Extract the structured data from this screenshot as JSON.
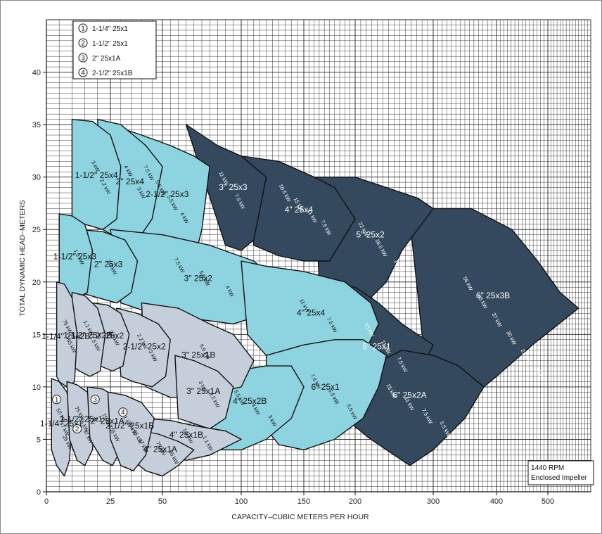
{
  "chart_data": {
    "type": "area",
    "xlabel": "CAPACITY–CUBIC METERS PER HOUR",
    "ylabel": "TOTAL DYNAMIC HEAD–METERS",
    "x_ticks": [
      "0",
      "25",
      "50",
      "100",
      "150",
      "200",
      "300",
      "400",
      "500"
    ],
    "y_ticks": [
      "0",
      "5",
      "10",
      "15",
      "20",
      "25",
      "30",
      "35",
      "40"
    ],
    "ylim": [
      0,
      45
    ],
    "grid": true,
    "legend": [
      {
        "marker": "1",
        "label": "1-1/4\"  25x1"
      },
      {
        "marker": "2",
        "label": "1-1/2\"  25x1"
      },
      {
        "marker": "3",
        "label": "2\"  25x1A"
      },
      {
        "marker": "4",
        "label": "2-1/2\"  25x1B"
      }
    ],
    "annotation": [
      "1440 RPM",
      "Enclosed Impeller"
    ],
    "colors": {
      "dark": "#34495e",
      "cyan": "#8ed3e0",
      "light": "#c4cfdb",
      "outline": "#111111"
    },
    "regions": [
      {
        "label": "6\" 25x3B",
        "shade": "dark",
        "poly": [
          [
            270,
            26
          ],
          [
            300,
            27
          ],
          [
            360,
            27
          ],
          [
            430,
            25
          ],
          [
            480,
            22
          ],
          [
            520,
            19
          ],
          [
            550,
            17.5
          ],
          [
            470,
            14
          ],
          [
            400,
            11
          ],
          [
            340,
            8
          ],
          [
            300,
            5
          ]
        ],
        "kw": [
          "56 kW",
          "45 kW",
          "37 kW",
          "30 kW",
          "22 kW",
          "19 kW"
        ]
      },
      {
        "label": "5\" 25x2",
        "shade": "dark",
        "poly": [
          [
            160,
            30
          ],
          [
            200,
            30
          ],
          [
            240,
            29
          ],
          [
            280,
            28
          ],
          [
            300,
            27
          ],
          [
            260,
            23
          ],
          [
            240,
            20
          ],
          [
            200,
            17
          ],
          [
            180,
            17
          ],
          [
            165,
            20
          ]
        ],
        "kw": [
          "22 kW",
          "18.5 kW",
          "15 kW"
        ]
      },
      {
        "label": "4\" 25x4",
        "shade": "dark",
        "poly": [
          [
            100,
            32
          ],
          [
            130,
            31.5
          ],
          [
            160,
            30
          ],
          [
            180,
            29
          ],
          [
            200,
            26
          ],
          [
            175,
            22
          ],
          [
            150,
            22
          ],
          [
            130,
            22.5
          ],
          [
            110,
            23.5
          ]
        ],
        "kw": [
          "18.5 kW",
          "15 kW",
          "11 kW",
          "7.5 kW"
        ]
      },
      {
        "label": "3\" 25x3",
        "shade": "dark",
        "poly": [
          [
            65,
            35
          ],
          [
            85,
            33
          ],
          [
            100,
            32
          ],
          [
            120,
            30
          ],
          [
            110,
            24
          ],
          [
            100,
            23
          ],
          [
            90,
            23.5
          ]
        ],
        "kw": [
          "11 kW",
          "7.5 kW"
        ]
      },
      {
        "label": "5\" 25x1",
        "shade": "dark",
        "poly": [
          [
            170,
            20
          ],
          [
            200,
            19.5
          ],
          [
            230,
            18
          ],
          [
            260,
            16
          ],
          [
            300,
            14
          ],
          [
            280,
            11
          ],
          [
            250,
            9
          ],
          [
            220,
            8
          ],
          [
            200,
            8
          ],
          [
            180,
            11
          ]
        ],
        "kw": [
          "15 kW",
          "11 kW",
          "7.5 kW"
        ]
      },
      {
        "label": "6\" 25x2A",
        "shade": "dark",
        "poly": [
          [
            180,
            11
          ],
          [
            220,
            12
          ],
          [
            260,
            13.5
          ],
          [
            300,
            13
          ],
          [
            340,
            12
          ],
          [
            380,
            10
          ],
          [
            350,
            7
          ],
          [
            300,
            4
          ],
          [
            270,
            2.5
          ],
          [
            220,
            5
          ],
          [
            190,
            7
          ]
        ],
        "kw": [
          "15 kW",
          "11 kW",
          "7.5 kW",
          "5.5 kW"
        ]
      },
      {
        "label": "2-1/2\" 25x3",
        "shade": "cyan",
        "poly": [
          [
            25,
            35
          ],
          [
            40,
            34
          ],
          [
            55,
            33
          ],
          [
            70,
            32
          ],
          [
            80,
            31
          ],
          [
            75,
            25
          ],
          [
            70,
            22
          ],
          [
            60,
            22
          ],
          [
            45,
            22.5
          ],
          [
            30,
            23
          ]
        ],
        "kw": [
          "7.5 kW",
          "5.5 kW",
          "5.5 kW",
          "4 kW"
        ]
      },
      {
        "label": "2\" 25x4",
        "shade": "cyan",
        "poly": [
          [
            20,
            35.5
          ],
          [
            30,
            35
          ],
          [
            42,
            33
          ],
          [
            50,
            31
          ],
          [
            45,
            26
          ],
          [
            38,
            24
          ],
          [
            30,
            24
          ],
          [
            22,
            25
          ]
        ],
        "kw": [
          "4 kW",
          "3 kW"
        ]
      },
      {
        "label": "1-1/2\" 25x4",
        "shade": "cyan",
        "poly": [
          [
            10,
            35.5
          ],
          [
            18,
            35.3
          ],
          [
            25,
            34
          ],
          [
            30,
            31
          ],
          [
            28,
            26
          ],
          [
            22,
            25
          ],
          [
            15,
            25.5
          ],
          [
            10,
            26
          ]
        ],
        "kw": [
          "3 kW",
          "2.2 kW"
        ]
      },
      {
        "label": "3\" 25x2",
        "shade": "cyan",
        "poly": [
          [
            25,
            25
          ],
          [
            50,
            24.5
          ],
          [
            80,
            23.5
          ],
          [
            110,
            22
          ],
          [
            130,
            20
          ],
          [
            120,
            17
          ],
          [
            95,
            16
          ],
          [
            70,
            16.5
          ],
          [
            45,
            17
          ],
          [
            30,
            18
          ]
        ],
        "kw": [
          "7.5 kW",
          "5.5 kW",
          "4 kW"
        ]
      },
      {
        "label": "2\" 25x3",
        "shade": "cyan",
        "poly": [
          [
            12,
            25
          ],
          [
            22,
            24.8
          ],
          [
            32,
            24
          ],
          [
            38,
            22
          ],
          [
            35,
            19
          ],
          [
            28,
            18
          ],
          [
            20,
            18.5
          ],
          [
            13,
            19
          ]
        ],
        "kw": [
          "2.2 kW"
        ]
      },
      {
        "label": "1-1/2\" 25x3",
        "shade": "cyan",
        "poly": [
          [
            5,
            26.5
          ],
          [
            10,
            26.3
          ],
          [
            15,
            25.5
          ],
          [
            18,
            23
          ],
          [
            16,
            19
          ],
          [
            12,
            18.5
          ],
          [
            8,
            18.5
          ],
          [
            5,
            19
          ]
        ],
        "kw": [
          "1.5 kW"
        ]
      },
      {
        "label": "4\" 25x4",
        "shade": "cyan",
        "poly": [
          [
            100,
            22
          ],
          [
            120,
            21.5
          ],
          [
            150,
            21
          ],
          [
            190,
            20
          ],
          [
            220,
            18
          ],
          [
            230,
            16
          ],
          [
            210,
            13
          ],
          [
            180,
            12
          ],
          [
            150,
            12
          ],
          [
            120,
            13
          ],
          [
            105,
            15
          ]
        ],
        "kw": [
          "11 kW",
          "7.5 kW"
        ]
      },
      {
        "label": "6\" 25x1",
        "shade": "cyan",
        "poly": [
          [
            120,
            13
          ],
          [
            150,
            14
          ],
          [
            180,
            14.5
          ],
          [
            210,
            14.5
          ],
          [
            240,
            13
          ],
          [
            230,
            10
          ],
          [
            210,
            7
          ],
          [
            180,
            5
          ],
          [
            150,
            4
          ],
          [
            130,
            4.5
          ],
          [
            120,
            6
          ]
        ],
        "kw": [
          "7.5 kW",
          "5.5 kW",
          "5.5 kW"
        ]
      },
      {
        "label": "4\" 25x2B",
        "shade": "cyan",
        "poly": [
          [
            70,
            11
          ],
          [
            95,
            11.5
          ],
          [
            120,
            12
          ],
          [
            140,
            12
          ],
          [
            150,
            10
          ],
          [
            140,
            7
          ],
          [
            120,
            5
          ],
          [
            100,
            4
          ],
          [
            85,
            4
          ],
          [
            70,
            6
          ]
        ],
        "kw": [
          "5.5 kW",
          "4 kW",
          "3 kW"
        ]
      },
      {
        "label": "3\" 25x1B",
        "shade": "light",
        "poly": [
          [
            40,
            18
          ],
          [
            60,
            17.5
          ],
          [
            80,
            16
          ],
          [
            95,
            15
          ],
          [
            110,
            12.5
          ],
          [
            100,
            10
          ],
          [
            85,
            9.5
          ],
          [
            70,
            9
          ],
          [
            55,
            9
          ],
          [
            42,
            10
          ]
        ],
        "kw": [
          "5.5 kW"
        ]
      },
      {
        "label": "3\" 25x1A",
        "shade": "light",
        "poly": [
          [
            58,
            13
          ],
          [
            70,
            12.5
          ],
          [
            85,
            11.5
          ],
          [
            95,
            10
          ],
          [
            90,
            7
          ],
          [
            80,
            6
          ],
          [
            70,
            6.5
          ],
          [
            60,
            7
          ]
        ],
        "kw": [
          "3 kW",
          "2.2 kW"
        ]
      },
      {
        "label": "2-1/2\" 25x2",
        "shade": "light",
        "poly": [
          [
            28,
            17.5
          ],
          [
            38,
            17
          ],
          [
            48,
            16
          ],
          [
            55,
            14.5
          ],
          [
            52,
            11
          ],
          [
            45,
            10
          ],
          [
            36,
            10.5
          ],
          [
            30,
            11
          ]
        ],
        "kw": [
          "2.2 kW",
          "3 kW"
        ]
      },
      {
        "label": "2\" 25x2",
        "shade": "light",
        "poly": [
          [
            18,
            18
          ],
          [
            24,
            17.8
          ],
          [
            30,
            17
          ],
          [
            34,
            15
          ],
          [
            31,
            12
          ],
          [
            26,
            11.5
          ],
          [
            21,
            12
          ],
          [
            18,
            12.5
          ]
        ],
        "kw": [
          "2.2 kW"
        ]
      },
      {
        "label": "1-1/2\" 25x2B",
        "shade": "light",
        "poly": [
          [
            10,
            19
          ],
          [
            15,
            18.7
          ],
          [
            20,
            17.5
          ],
          [
            23,
            15
          ],
          [
            21,
            11.5
          ],
          [
            17,
            11
          ],
          [
            13,
            11.5
          ],
          [
            10,
            12
          ]
        ],
        "kw": [
          "1.1 kW",
          "1.5 kW"
        ]
      },
      {
        "label": "1-1/4\" 25x2B",
        "shade": "light",
        "poly": [
          [
            4,
            20
          ],
          [
            7,
            19.8
          ],
          [
            10,
            18.5
          ],
          [
            12,
            15
          ],
          [
            11,
            10.5
          ],
          [
            8,
            10
          ],
          [
            5,
            10.5
          ],
          [
            4,
            11
          ]
        ],
        "kw": [
          "75 kW",
          "55 kW"
        ]
      },
      {
        "label": "4\" 25x1B",
        "shade": "light",
        "poly": [
          [
            40,
            7
          ],
          [
            55,
            6.8
          ],
          [
            70,
            6.3
          ],
          [
            90,
            5.8
          ],
          [
            100,
            5
          ],
          [
            80,
            3.5
          ],
          [
            65,
            3
          ],
          [
            50,
            3.5
          ],
          [
            42,
            4.5
          ]
        ],
        "kw": [
          "1.5 kW",
          "1.1 kW"
        ]
      },
      {
        "label": "4\" 25x1A",
        "shade": "light",
        "poly": [
          [
            35,
            6
          ],
          [
            48,
            5.5
          ],
          [
            60,
            4.8
          ],
          [
            70,
            4
          ],
          [
            60,
            2.5
          ],
          [
            50,
            1.5
          ],
          [
            42,
            2
          ],
          [
            36,
            3
          ]
        ],
        "kw": [
          "75 kW",
          "55 kW"
        ]
      },
      {
        "label": "1-1/4\" 25x1",
        "shade": "light",
        "poly": [
          [
            2,
            10.8
          ],
          [
            5,
            10.5
          ],
          [
            8,
            9.5
          ],
          [
            10,
            7
          ],
          [
            9,
            3
          ],
          [
            7,
            1.5
          ],
          [
            4,
            2.5
          ],
          [
            2,
            4
          ]
        ],
        "kw": [
          "55 kW",
          "37 kW",
          "25 kW"
        ]
      },
      {
        "label": "1-1/2\" 25x1",
        "shade": "light",
        "poly": [
          [
            8,
            10.5
          ],
          [
            12,
            10.2
          ],
          [
            16,
            9.5
          ],
          [
            19,
            7.5
          ],
          [
            18,
            4
          ],
          [
            15,
            2.5
          ],
          [
            12,
            3
          ],
          [
            9,
            5
          ]
        ],
        "kw": [
          "75 kW",
          "55 kW",
          "37 kW"
        ]
      },
      {
        "label": "2\" 25x1A",
        "shade": "light",
        "poly": [
          [
            16,
            10
          ],
          [
            22,
            9.8
          ],
          [
            28,
            9
          ],
          [
            33,
            7.5
          ],
          [
            30,
            4
          ],
          [
            26,
            2.5
          ],
          [
            22,
            3
          ],
          [
            17,
            5
          ]
        ],
        "kw": [
          "75 kW",
          "55 kW"
        ]
      },
      {
        "label": "2-1/2\" 25x1B",
        "shade": "light",
        "poly": [
          [
            24,
            9.5
          ],
          [
            32,
            9.2
          ],
          [
            40,
            8.5
          ],
          [
            46,
            7
          ],
          [
            42,
            3.5
          ],
          [
            36,
            2
          ],
          [
            30,
            2.5
          ],
          [
            25,
            5
          ]
        ],
        "kw": [
          "1.1 kW",
          "75 kW",
          "55 kW",
          "37 kW"
        ]
      }
    ],
    "markers": [
      {
        "label": "1",
        "x": 4,
        "y": 8.8
      },
      {
        "label": "2",
        "x": 12,
        "y": 6
      },
      {
        "label": "3",
        "x": 19,
        "y": 8.8
      },
      {
        "label": "4",
        "x": 31,
        "y": 7.6
      }
    ]
  }
}
